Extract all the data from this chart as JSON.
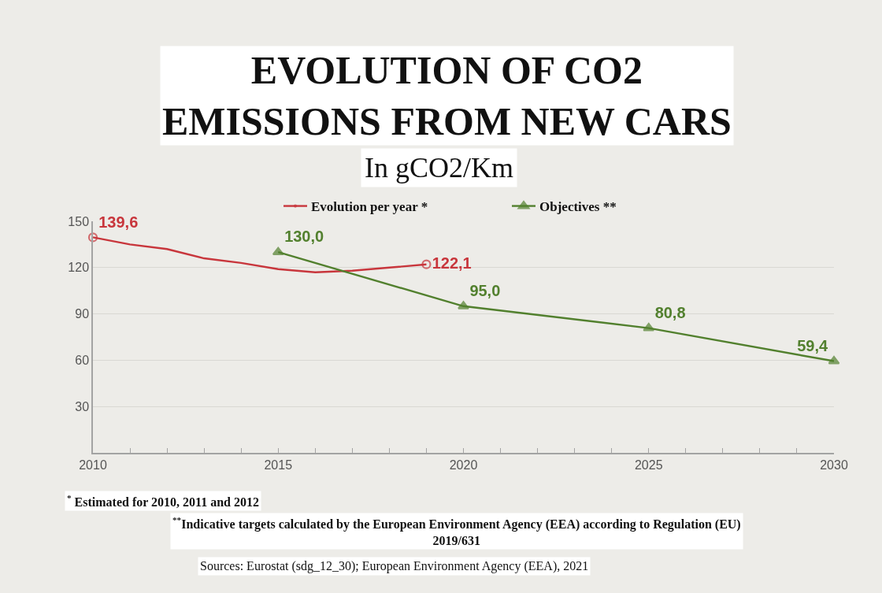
{
  "chart_data": {
    "type": "line",
    "title": "EVOLUTION OF CO2 EMISSIONS FROM NEW CARS",
    "subtitle": "In gCO2/Km",
    "series": [
      {
        "name": "Evolution per year *",
        "color": "#c8363c",
        "x": [
          2010,
          2011,
          2012,
          2013,
          2014,
          2015,
          2016,
          2017,
          2018,
          2019
        ],
        "values": [
          139.6,
          135,
          132,
          126,
          123,
          119,
          117,
          118,
          120,
          122.1
        ],
        "value_labels": [
          "139,6",
          null,
          null,
          null,
          null,
          null,
          null,
          null,
          null,
          "122,1"
        ]
      },
      {
        "name": "Objectives **",
        "color": "#52802e",
        "marker": "triangle",
        "x": [
          2015,
          2020,
          2025,
          2030
        ],
        "values": [
          130.0,
          95.0,
          80.8,
          59.4
        ],
        "value_labels": [
          "130,0",
          "95,0",
          "80,8",
          "59,4"
        ]
      }
    ],
    "xlim": [
      2010,
      2030
    ],
    "xticks": [
      2010,
      {
        "value": 2011,
        "label": null
      },
      {
        "value": 2012,
        "label": null
      },
      {
        "value": 2013,
        "label": null
      },
      {
        "value": 2014,
        "label": null
      },
      2015,
      {
        "value": 2016,
        "label": null
      },
      {
        "value": 2017,
        "label": null
      },
      {
        "value": 2018,
        "label": null
      },
      {
        "value": 2019,
        "label": null
      },
      2020,
      {
        "value": 2021,
        "label": null
      },
      {
        "value": 2022,
        "label": null
      },
      {
        "value": 2023,
        "label": null
      },
      {
        "value": 2024,
        "label": null
      },
      2025,
      {
        "value": 2026,
        "label": null
      },
      {
        "value": 2027,
        "label": null
      },
      {
        "value": 2028,
        "label": null
      },
      {
        "value": 2029,
        "label": null
      },
      2030
    ],
    "ylim": [
      0,
      150
    ],
    "yticks": [
      30,
      60,
      90,
      120,
      150
    ],
    "grid": "y",
    "legend": "top",
    "annotations": [
      "$^{*}$ Estimated for 2010, 2011 and 2012",
      "$^{**}$Indicative targets calculated by the European Environment Agency (EEA) according to Regulation (EU) 2019/631",
      "Sources: Eurostat (sdg_12_30); European Environment Agency (EEA), 2021"
    ]
  }
}
